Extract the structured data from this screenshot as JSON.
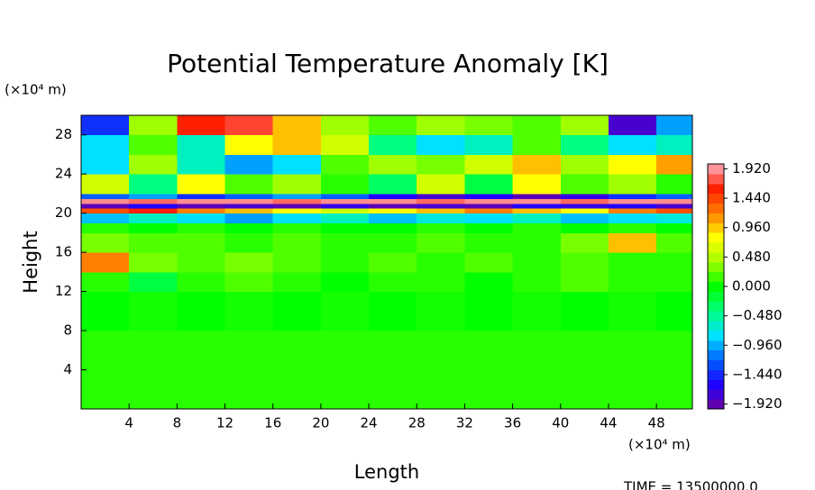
{
  "chart_data": {
    "type": "heatmap",
    "title": "Potential Temperature Anomaly [K]",
    "x_label": "Length",
    "y_label": "Height",
    "x_unit": "(×10⁴ m)",
    "y_unit": "(×10⁴ m)",
    "footer": "TIME = 13500000.0",
    "xlim": [
      0,
      51
    ],
    "ylim": [
      0,
      30
    ],
    "xticks": [
      4,
      8,
      12,
      16,
      20,
      24,
      28,
      32,
      36,
      40,
      44,
      48
    ],
    "yticks": [
      4,
      8,
      12,
      16,
      20,
      24,
      28
    ],
    "x_edges": [
      0,
      4,
      8,
      12,
      16,
      20,
      24,
      28,
      32,
      36,
      40,
      44,
      48,
      51
    ],
    "y_edges": [
      0,
      8,
      12,
      14,
      16,
      18,
      19,
      20,
      20.5,
      21,
      21.5,
      22,
      24,
      26,
      28,
      30
    ],
    "z": [
      [
        0.1,
        0.1,
        0.1,
        0.1,
        0.1,
        0.1,
        0.1,
        0.1,
        0.1,
        0.1,
        0.1,
        0.1,
        0.1
      ],
      [
        0.0,
        0.05,
        0.0,
        0.05,
        0.0,
        0.05,
        0.0,
        0.05,
        0.0,
        0.05,
        0.0,
        0.05,
        0.0
      ],
      [
        0.1,
        -0.2,
        0.1,
        0.2,
        0.1,
        0.0,
        0.1,
        0.1,
        0.0,
        0.1,
        0.2,
        0.1,
        0.1
      ],
      [
        1.2,
        0.3,
        0.2,
        0.3,
        0.2,
        0.1,
        0.2,
        0.1,
        0.2,
        0.1,
        0.2,
        0.1,
        0.1
      ],
      [
        0.3,
        0.2,
        0.2,
        0.1,
        0.2,
        0.1,
        0.1,
        0.2,
        0.1,
        0.1,
        0.3,
        1.0,
        0.2
      ],
      [
        0.1,
        0.0,
        0.1,
        0.0,
        0.1,
        0.0,
        0.0,
        0.1,
        0.0,
        0.1,
        0.0,
        0.1,
        0.0
      ],
      [
        -0.9,
        -0.6,
        -0.8,
        -1.0,
        -0.8,
        -0.6,
        -0.9,
        -0.7,
        -0.8,
        -0.6,
        -0.9,
        -0.8,
        -0.7
      ],
      [
        1.4,
        1.6,
        1.2,
        1.0,
        0.8,
        0.6,
        0.8,
        1.0,
        1.2,
        1.0,
        0.8,
        1.2,
        1.4
      ],
      [
        -1.9,
        -1.6,
        -1.9,
        -1.8,
        -1.9,
        -1.7,
        -1.9,
        -1.8,
        -1.9,
        -1.6,
        -1.7,
        -1.6,
        -1.8
      ],
      [
        1.9,
        1.8,
        1.9,
        1.9,
        1.8,
        1.9,
        1.9,
        1.8,
        1.9,
        1.9,
        1.8,
        1.9,
        1.9
      ],
      [
        -1.2,
        -1.0,
        -1.4,
        -1.2,
        -1.0,
        -1.2,
        -1.6,
        -1.8,
        -1.6,
        -1.9,
        -1.7,
        -1.4,
        -1.2
      ],
      [
        0.6,
        -0.4,
        0.8,
        0.2,
        0.4,
        0.1,
        -0.3,
        0.6,
        -0.2,
        0.8,
        0.2,
        0.4,
        0.1
      ],
      [
        -0.8,
        0.4,
        -0.6,
        -1.0,
        -0.8,
        0.2,
        0.4,
        0.3,
        0.6,
        1.0,
        0.4,
        0.8,
        1.1
      ],
      [
        -0.8,
        0.2,
        -0.6,
        0.8,
        1.0,
        0.6,
        -0.4,
        -0.8,
        -0.6,
        0.2,
        -0.4,
        -0.8,
        -0.6
      ],
      [
        -1.4,
        0.4,
        1.6,
        1.7,
        1.0,
        0.4,
        0.2,
        0.4,
        0.3,
        0.2,
        0.4,
        -1.8,
        -1.0
      ]
    ],
    "clim": [
      -2,
      2
    ],
    "cticks": [
      {
        "value": -1.92,
        "label": "−1.920"
      },
      {
        "value": -1.44,
        "label": "−1.440"
      },
      {
        "value": -0.96,
        "label": "−0.960"
      },
      {
        "value": -0.48,
        "label": "−0.480"
      },
      {
        "value": 0,
        "label": "0.000"
      },
      {
        "value": 0.48,
        "label": "0.480"
      },
      {
        "value": 0.96,
        "label": "0.960"
      },
      {
        "value": 1.44,
        "label": "1.440"
      },
      {
        "value": 1.92,
        "label": "1.920"
      }
    ],
    "colormap": [
      "#7000a0",
      "#2000ff",
      "#0060ff",
      "#00e0ff",
      "#00ff80",
      "#00ff00",
      "#a0ff00",
      "#ffff00",
      "#ff8000",
      "#ff2000",
      "#ffb0c0"
    ]
  }
}
